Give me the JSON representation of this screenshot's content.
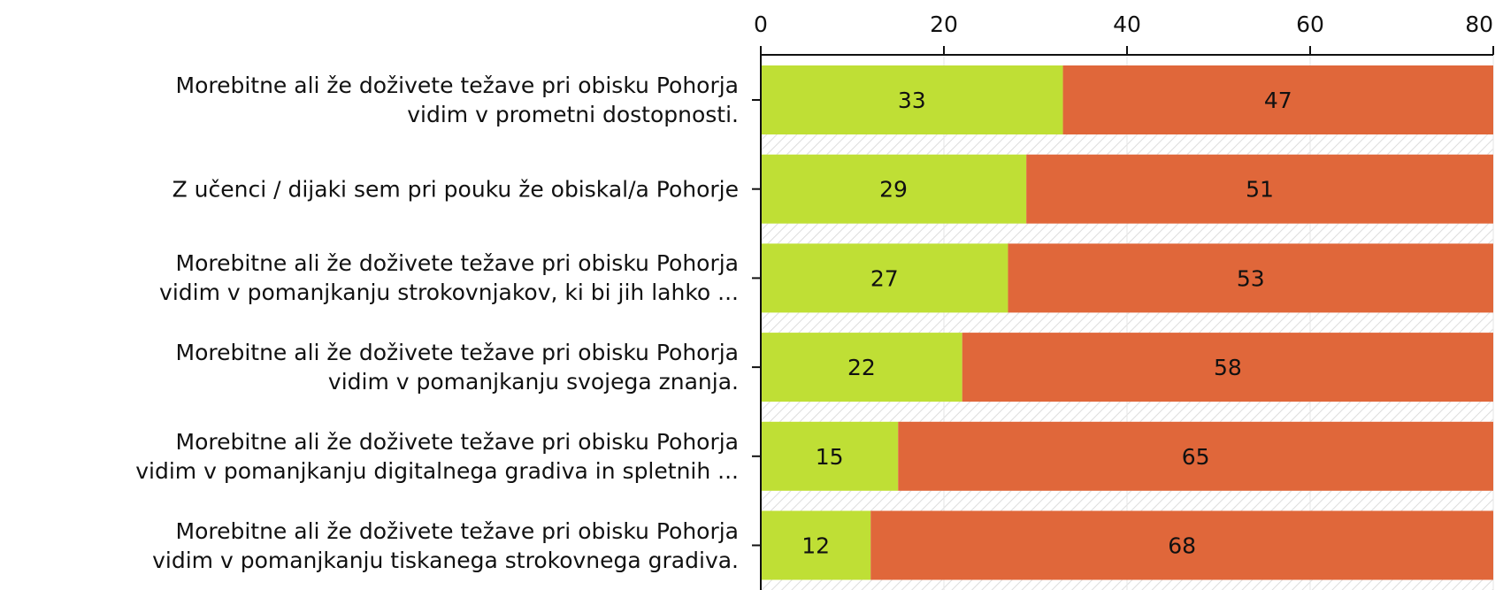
{
  "chart_data": {
    "type": "stacked_barh",
    "categories": [
      "Morebitne ali že doživete težave pri obisku Pohorja\nvidim v prometni dostopnosti.",
      "Z učenci / dijaki sem pri pouku že obiskal/a Pohorje",
      "Morebitne ali že doživete težave pri obisku Pohorja\nvidim v pomanjkanju strokovnjakov, ki bi jih lahko ...",
      "Morebitne ali že doživete težave pri obisku Pohorja\nvidim v pomanjkanju svojega znanja.",
      "Morebitne ali že doživete težave pri obisku Pohorja\nvidim v pomanjkanju digitalnega gradiva in spletnih ...",
      "Morebitne ali že doživete težave pri obisku Pohorja\nvidim v pomanjkanju tiskanega strokovnega gradiva."
    ],
    "series": [
      {
        "color": "#bfdf35",
        "values": [
          33,
          29,
          27,
          22,
          15,
          12
        ]
      },
      {
        "color": "#e0673a",
        "values": [
          47,
          51,
          53,
          58,
          65,
          68
        ]
      }
    ],
    "xlim": [
      0,
      80
    ],
    "xticks": [
      0,
      20,
      40,
      60,
      80
    ]
  }
}
